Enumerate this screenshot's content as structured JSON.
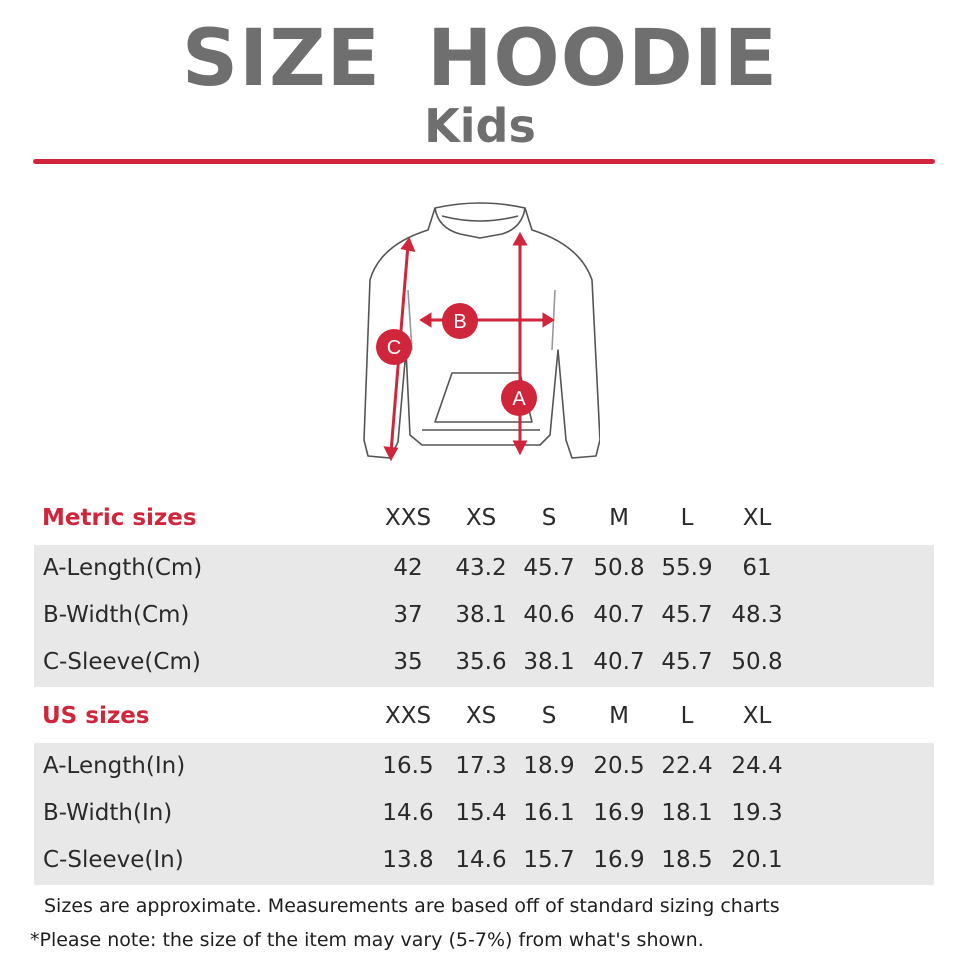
{
  "title": "SIZE HOODIE",
  "subtitle": "Kids",
  "colors": {
    "accent": "#d0263c",
    "title_gray": "#6f6f6f",
    "band_gray": "#e8e8e8"
  },
  "diagram": {
    "labels": [
      "A",
      "B",
      "C"
    ]
  },
  "sizes": [
    "XXS",
    "XS",
    "S",
    "M",
    "L",
    "XL"
  ],
  "metric": {
    "heading": "Metric sizes",
    "rows": [
      {
        "label": "A-Length(Cm)",
        "values": [
          "42",
          "43.2",
          "45.7",
          "50.8",
          "55.9",
          "61"
        ]
      },
      {
        "label": "B-Width(Cm)",
        "values": [
          "37",
          "38.1",
          "40.6",
          "40.7",
          "45.7",
          "48.3"
        ]
      },
      {
        "label": "C-Sleeve(Cm)",
        "values": [
          "35",
          "35.6",
          "38.1",
          "40.7",
          "45.7",
          "50.8"
        ]
      }
    ]
  },
  "us": {
    "heading": "US sizes",
    "rows": [
      {
        "label": "A-Length(In)",
        "values": [
          "16.5",
          "17.3",
          "18.9",
          "20.5",
          "22.4",
          "24.4"
        ]
      },
      {
        "label": "B-Width(In)",
        "values": [
          "14.6",
          "15.4",
          "16.1",
          "16.9",
          "18.1",
          "19.3"
        ]
      },
      {
        "label": "C-Sleeve(In)",
        "values": [
          "13.8",
          "14.6",
          "15.7",
          "16.9",
          "18.5",
          "20.1"
        ]
      }
    ]
  },
  "notes": [
    "Sizes are approximate. Measurements are based off of standard sizing charts",
    "*Please note: the size of the item may vary (5-7%) from what's shown."
  ]
}
